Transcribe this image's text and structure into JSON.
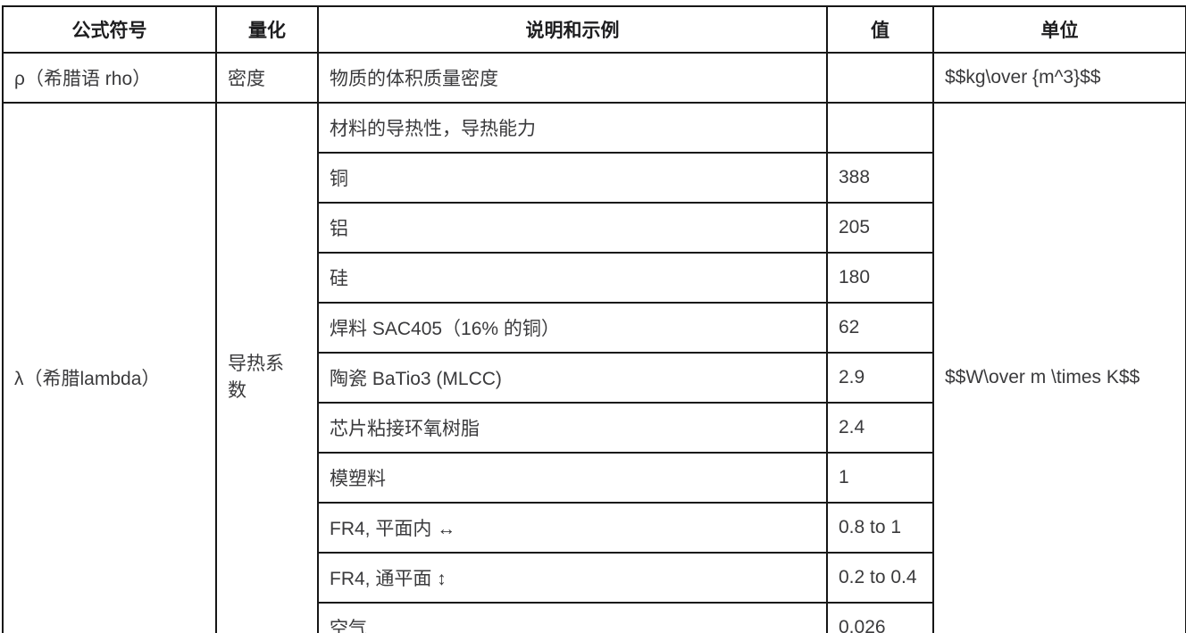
{
  "table": {
    "headers": {
      "symbol": "公式符号",
      "quantity": "量化",
      "description": "说明和示例",
      "value": "值",
      "unit": "单位"
    },
    "rho_row": {
      "symbol": "ρ（希腊语 rho）",
      "quantity": "密度",
      "description": "物质的体积质量密度",
      "value": "",
      "unit": "$$kg\\over {m^3}$$"
    },
    "lambda_row": {
      "symbol": "λ（希腊lambda）",
      "quantity": "导热系数",
      "unit": "$$W\\over m \\times K$$",
      "entries": [
        {
          "description": "材料的导热性，导热能力",
          "value": ""
        },
        {
          "description": "铜",
          "value": "388"
        },
        {
          "description": "铝",
          "value": "205"
        },
        {
          "description": "硅",
          "value": "180"
        },
        {
          "description": "焊料 SAC405（16% 的铜）",
          "value": "62"
        },
        {
          "description": "陶瓷 BaTio3 (MLCC)",
          "value": "2.9"
        },
        {
          "description": "芯片粘接环氧树脂",
          "value": "2.4"
        },
        {
          "description": "模塑料",
          "value": "1"
        },
        {
          "description": "FR4, 平面内 ↔",
          "value": "0.8 to 1"
        },
        {
          "description": "FR4, 通平面 ↕",
          "value": "0.2 to 0.4"
        },
        {
          "description": "空气",
          "value": "0.026"
        }
      ]
    }
  }
}
